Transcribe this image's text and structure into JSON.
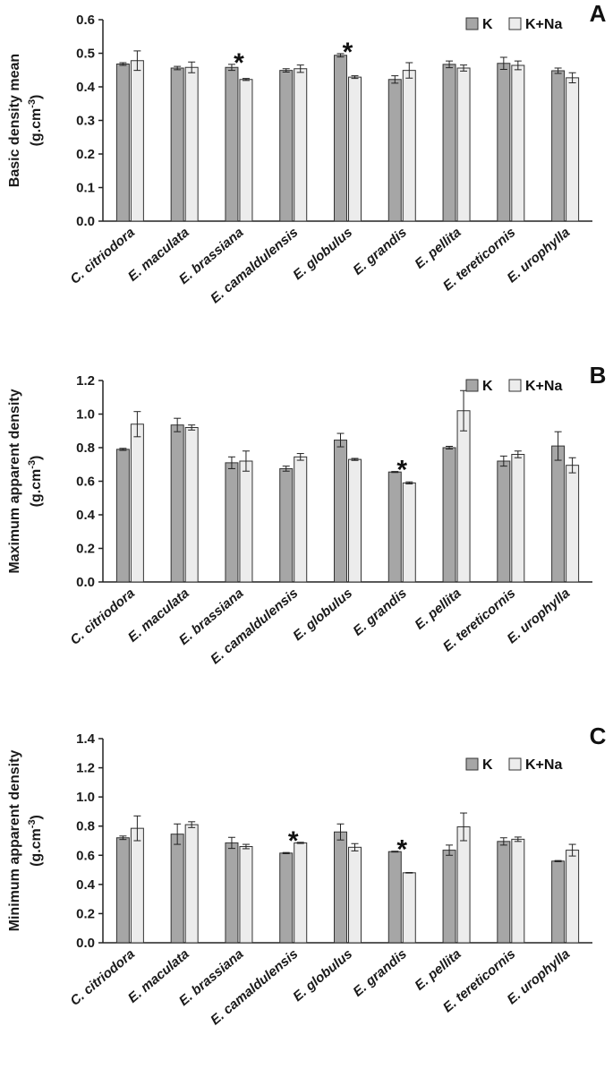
{
  "colors": {
    "K": "#a6a6a6",
    "K_Na": "#ececec",
    "stroke": "#333333",
    "axis": "#222222"
  },
  "chart_data": [
    {
      "type": "bar",
      "panel": "A",
      "ylabel_main": "Basic density mean",
      "ylabel_unit_base": "(g.cm",
      "ylabel_unit_sup": "-3",
      "ylabel_unit_end": ")",
      "ylim": [
        0,
        0.6
      ],
      "yticks": [
        "0.0",
        "0.1",
        "0.2",
        "0.3",
        "0.4",
        "0.5",
        "0.6"
      ],
      "grid": false,
      "legend": "top-right",
      "categories": [
        "C. citriodora",
        "E. maculata",
        "E. brassiana",
        "E. camaldulensis",
        "E. globulus",
        "E. grandis",
        "E. pellita",
        "E. tereticornis",
        "E. urophylla"
      ],
      "series": [
        {
          "name": "K",
          "values": [
            0.468,
            0.456,
            0.458,
            0.449,
            0.494,
            0.422,
            0.467,
            0.47,
            0.448
          ],
          "errors": [
            0.004,
            0.005,
            0.009,
            0.005,
            0.005,
            0.011,
            0.01,
            0.018,
            0.008
          ]
        },
        {
          "name": "K+Na",
          "values": [
            0.478,
            0.458,
            0.422,
            0.454,
            0.429,
            0.449,
            0.456,
            0.464,
            0.427
          ],
          "errors": [
            0.029,
            0.016,
            0.003,
            0.011,
            0.004,
            0.023,
            0.009,
            0.013,
            0.015
          ]
        }
      ],
      "significance": [
        {
          "category_index": 2,
          "symbol": "*"
        },
        {
          "category_index": 4,
          "symbol": "*"
        }
      ]
    },
    {
      "type": "bar",
      "panel": "B",
      "ylabel_main": "Maximum apparent density",
      "ylabel_unit_base": "(g.cm",
      "ylabel_unit_sup": "-3",
      "ylabel_unit_end": ")",
      "ylim": [
        0,
        1.2
      ],
      "yticks": [
        "0.0",
        "0.2",
        "0.4",
        "0.6",
        "0.8",
        "1.0",
        "1.2"
      ],
      "grid": false,
      "legend": "top-right",
      "categories": [
        "C. citriodora",
        "E. maculata",
        "E. brassiana",
        "E. camaldulensis",
        "E. globulus",
        "E. grandis",
        "E. pellita",
        "E. tereticornis",
        "E. urophylla"
      ],
      "series": [
        {
          "name": "K",
          "values": [
            0.79,
            0.935,
            0.71,
            0.675,
            0.845,
            0.655,
            0.8,
            0.72,
            0.81
          ],
          "errors": [
            0.006,
            0.04,
            0.035,
            0.015,
            0.04,
            0.003,
            0.008,
            0.03,
            0.085
          ]
        },
        {
          "name": "K+Na",
          "values": [
            0.94,
            0.92,
            0.72,
            0.745,
            0.73,
            0.59,
            1.02,
            0.76,
            0.695
          ],
          "errors": [
            0.075,
            0.015,
            0.06,
            0.02,
            0.006,
            0.006,
            0.12,
            0.02,
            0.045
          ]
        }
      ],
      "significance": [
        {
          "category_index": 5,
          "symbol": "*"
        }
      ]
    },
    {
      "type": "bar",
      "panel": "C",
      "ylabel_main": "Minimum apparent density",
      "ylabel_unit_base": "(g.cm",
      "ylabel_unit_sup": "-3",
      "ylabel_unit_end": ")",
      "ylim": [
        0,
        1.4
      ],
      "yticks": [
        "0.0",
        "0.2",
        "0.4",
        "0.6",
        "0.8",
        "1.0",
        "1.2",
        "1.4"
      ],
      "grid": false,
      "legend": "top-right",
      "categories": [
        "C. citriodora",
        "E. maculata",
        "E. brassiana",
        "E. camaldulensis",
        "E. globulus",
        "E. grandis",
        "E. pellita",
        "E. tereticornis",
        "E. urophylla"
      ],
      "series": [
        {
          "name": "K",
          "values": [
            0.72,
            0.745,
            0.685,
            0.615,
            0.76,
            0.625,
            0.635,
            0.695,
            0.56
          ],
          "errors": [
            0.012,
            0.07,
            0.038,
            0.004,
            0.055,
            0.003,
            0.035,
            0.025,
            0.004
          ]
        },
        {
          "name": "K+Na",
          "values": [
            0.785,
            0.81,
            0.66,
            0.685,
            0.655,
            0.48,
            0.795,
            0.71,
            0.635
          ],
          "errors": [
            0.085,
            0.02,
            0.015,
            0.004,
            0.025,
            0.002,
            0.095,
            0.015,
            0.04
          ]
        }
      ],
      "significance": [
        {
          "category_index": 3,
          "symbol": "*"
        },
        {
          "category_index": 5,
          "symbol": "*"
        }
      ]
    }
  ]
}
